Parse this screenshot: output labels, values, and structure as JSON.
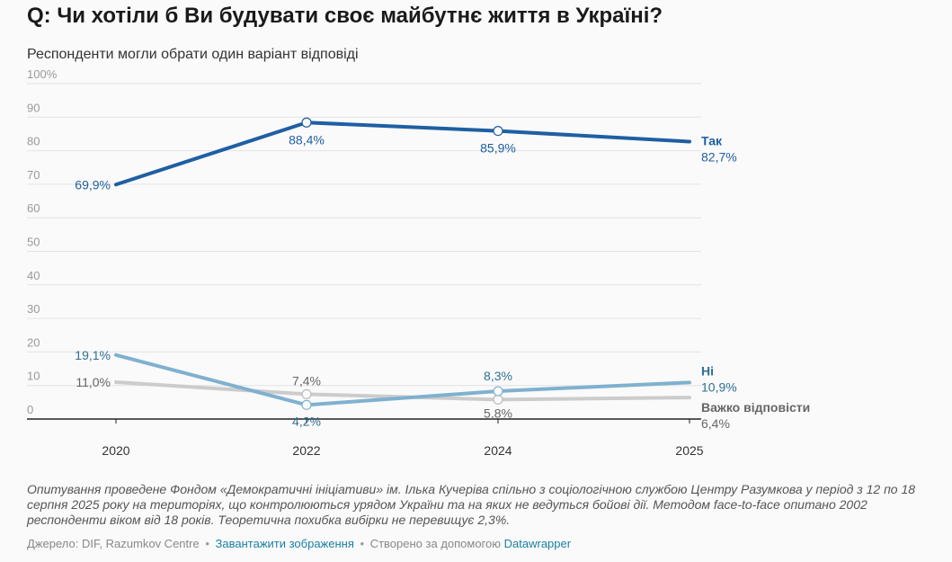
{
  "title": "Q: Чи хотіли б Ви будувати своє майбутнє життя в Україні?",
  "subtitle": "Респонденти могли обрати один варіант відповіді",
  "chart_data": {
    "type": "line",
    "x": [
      "2020",
      "2022",
      "2024",
      "2025"
    ],
    "ylim": [
      0,
      100
    ],
    "y_ticks": [
      "100%",
      "90",
      "80",
      "70",
      "60",
      "50",
      "40",
      "30",
      "20",
      "10",
      "0"
    ],
    "grid": true,
    "legend": "right-end labels",
    "series": [
      {
        "name": "Так",
        "values": [
          69.9,
          88.4,
          85.9,
          82.7
        ],
        "labels": [
          "69,9%",
          "88,4%",
          "85,9%",
          "82,7%"
        ],
        "color": "#1f5fa3",
        "label_color": "#1f5fa3"
      },
      {
        "name": "Ні",
        "values": [
          19.1,
          4.2,
          8.3,
          10.9
        ],
        "labels": [
          "19,1%",
          "4,2%",
          "8,3%",
          "10,9%"
        ],
        "color": "#7fb1cf",
        "label_color": "#2f6f94"
      },
      {
        "name": "Важко відповісти",
        "values": [
          11.0,
          7.4,
          5.8,
          6.4
        ],
        "labels": [
          "11,0%",
          "7,4%",
          "5,8%",
          "6,4%"
        ],
        "color": "#cccccc",
        "label_color": "#666666"
      }
    ]
  },
  "notes": "Опитування проведене Фондом «Демократичні ініціативи» ім. Ілька Кучеріва спільно з соціологічною службою Центру Разумкова у період з 12 по 18 серпня 2025 року на територіях, що контролюються урядом України та на яких не ведуться бойові дії. Методом face-to-face опитано 2002 респонденти віком від 18 років. Теоретична похибка вибірки не перевищує 2,3%.",
  "footer": {
    "source": "Джерело: DIF, Razumkov Centre",
    "separator": "•",
    "download_link": "Завантажити зображення",
    "created_with": "Створено за допомогою",
    "datawrapper_link": "Datawrapper"
  }
}
